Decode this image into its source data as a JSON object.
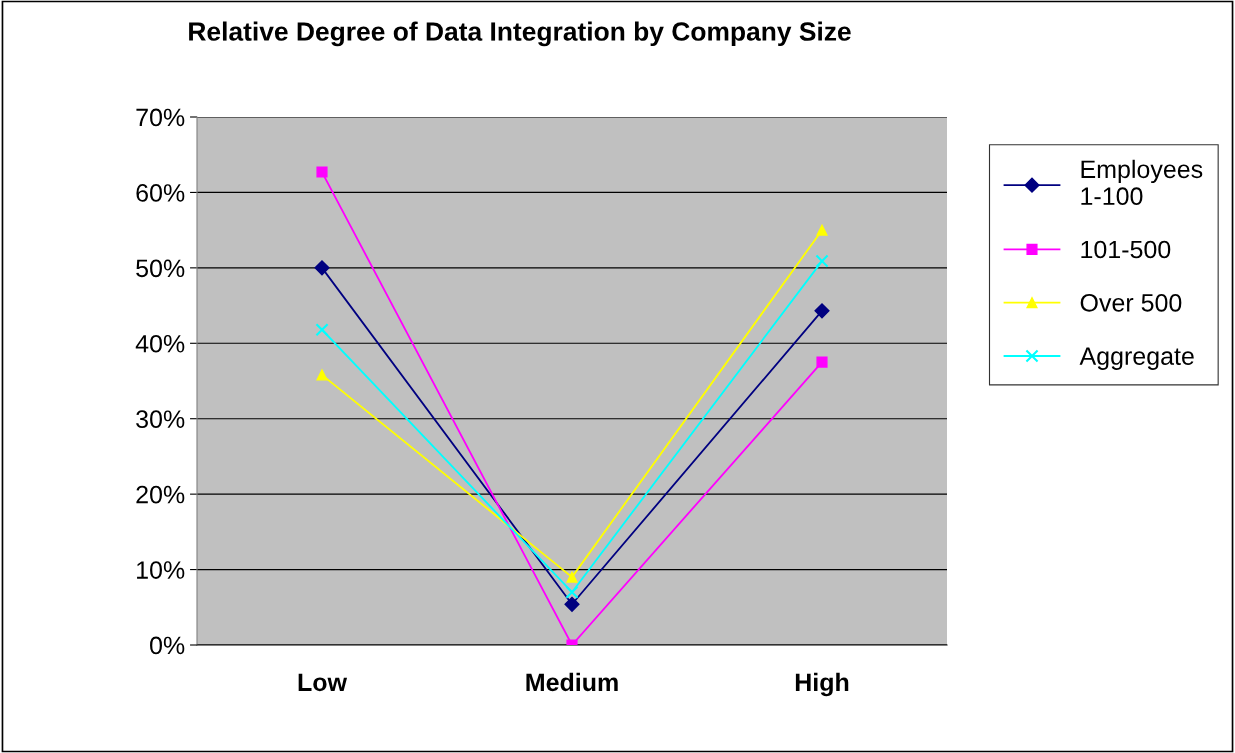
{
  "chart_data": {
    "type": "line",
    "title": "Relative Degree of Data Integration by Company Size",
    "categories": [
      "Low",
      "Medium",
      "High"
    ],
    "series": [
      {
        "name": "Employees 1-100",
        "color": "#000080",
        "marker": "diamond",
        "values": [
          50.0,
          5.4,
          44.3
        ]
      },
      {
        "name": "101-500",
        "color": "#ff00ff",
        "marker": "square",
        "values": [
          62.7,
          0.0,
          37.5
        ]
      },
      {
        "name": "Over 500",
        "color": "#ffff00",
        "marker": "triangle",
        "values": [
          35.8,
          9.0,
          55.0
        ]
      },
      {
        "name": "Aggregate",
        "color": "#00ffff",
        "marker": "cross",
        "values": [
          41.8,
          7.0,
          50.9
        ]
      }
    ],
    "ylim": [
      0,
      70
    ],
    "yticks": [
      {
        "value": 0,
        "label": "0%"
      },
      {
        "value": 10,
        "label": "10%"
      },
      {
        "value": 20,
        "label": "20%"
      },
      {
        "value": 30,
        "label": "30%"
      },
      {
        "value": 40,
        "label": "40%"
      },
      {
        "value": 50,
        "label": "50%"
      },
      {
        "value": 60,
        "label": "60%"
      },
      {
        "value": 70,
        "label": "70%"
      }
    ],
    "grid": "y",
    "legend": "right",
    "line_style": "solid"
  }
}
